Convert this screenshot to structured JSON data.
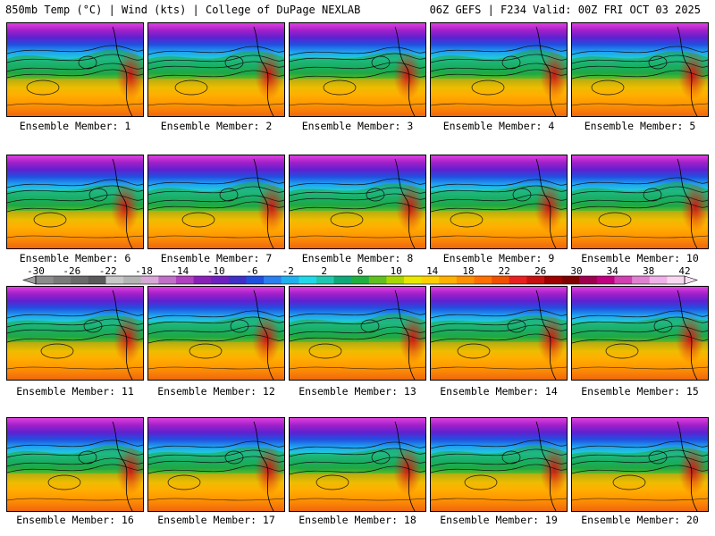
{
  "header": {
    "title_left": "850mb Temp (°C) | Wind (kts) | College of DuPage NEXLAB",
    "title_right": "06Z GEFS | F234 Valid: 00Z FRI OCT 03 2025"
  },
  "members": [
    {
      "label": "Ensemble Member: 1"
    },
    {
      "label": "Ensemble Member: 2"
    },
    {
      "label": "Ensemble Member: 3"
    },
    {
      "label": "Ensemble Member: 4"
    },
    {
      "label": "Ensemble Member: 5"
    },
    {
      "label": "Ensemble Member: 6"
    },
    {
      "label": "Ensemble Member: 7"
    },
    {
      "label": "Ensemble Member: 8"
    },
    {
      "label": "Ensemble Member: 9"
    },
    {
      "label": "Ensemble Member: 10"
    },
    {
      "label": "Ensemble Member: 11"
    },
    {
      "label": "Ensemble Member: 12"
    },
    {
      "label": "Ensemble Member: 13"
    },
    {
      "label": "Ensemble Member: 14"
    },
    {
      "label": "Ensemble Member: 15"
    },
    {
      "label": "Ensemble Member: 16"
    },
    {
      "label": "Ensemble Member: 17"
    },
    {
      "label": "Ensemble Member: 18"
    },
    {
      "label": "Ensemble Member: 19"
    },
    {
      "label": "Ensemble Member: 20"
    }
  ],
  "colorbar": {
    "ticks": [
      "-30",
      "-26",
      "-22",
      "-18",
      "-14",
      "-10",
      "-6",
      "-2",
      "2",
      "6",
      "10",
      "14",
      "18",
      "22",
      "26",
      "30",
      "34",
      "38",
      "42"
    ],
    "colors": [
      "#8c8c8c",
      "#7a7a7a",
      "#6a6a6a",
      "#5a5a5a",
      "#c8c8c8",
      "#b4b4b4",
      "#d8a8d8",
      "#c070c8",
      "#b040c0",
      "#8a20b8",
      "#7020c0",
      "#4030c8",
      "#2050e0",
      "#2a80f0",
      "#20b0f0",
      "#20d8e8",
      "#20c8b0",
      "#10a878",
      "#20b040",
      "#60c020",
      "#a8d800",
      "#e8e800",
      "#ffd000",
      "#ffb000",
      "#ff9000",
      "#ff7000",
      "#f05000",
      "#e82020",
      "#c81010",
      "#a00000",
      "#800000",
      "#a00050",
      "#c00080",
      "#d040b0",
      "#e080d0",
      "#f0b0e8",
      "#f8d8f0"
    ],
    "ramp": [
      "#e040e0",
      "#a020c8",
      "#6020d0",
      "#2050e0",
      "#20a0f0",
      "#20d0d8",
      "#10b890",
      "#20a840",
      "#70c020",
      "#d8e000",
      "#ffc000",
      "#ff9800",
      "#f06010",
      "#e02020"
    ]
  }
}
